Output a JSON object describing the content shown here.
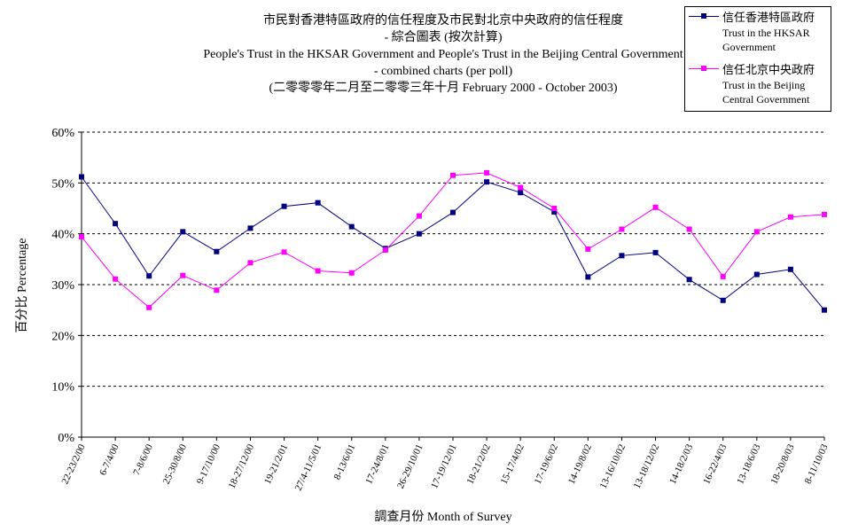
{
  "chart_data": {
    "type": "line",
    "title_lines": [
      "市民對香港特區政府的信任程度及市民對北京中央政府的信任程度",
      "- 綜合圖表 (按次計算)",
      "People's Trust in the HKSAR Government and People's Trust in the Beijing Central Government",
      "- combined charts (per poll)",
      "(二零零零年二月至二零零三年十月 February 2000 - October 2003)"
    ],
    "xlabel": "調查月份 Month of Survey",
    "ylabel": "百分比 Percentage",
    "ylim": [
      0,
      60
    ],
    "yticks": [
      "0%",
      "10%",
      "20%",
      "30%",
      "40%",
      "50%",
      "60%"
    ],
    "grid": "horizontal-dashed",
    "legend_position": "top-right",
    "categories": [
      "22-23/2/00",
      "6-7/4/00",
      "7-8/6/00",
      "25-30/8/00",
      "9-17/10/00",
      "18-27/12/00",
      "19-21/2/01",
      "27/4-11/5/01",
      "8-13/6/01",
      "17-24/8/01",
      "26-29/10/01",
      "17-19/12/01",
      "18-21/2/02",
      "15-17/4/02",
      "17-19/6/02",
      "14-19/8/02",
      "13-16/10/02",
      "13-18/12/02",
      "14-18/2/03",
      "16-22/4/03",
      "13-18/6/03",
      "18-20/8/03",
      "8-11/10/03"
    ],
    "series": [
      {
        "name": "信任香港特區政府",
        "name_en": "Trust in the HKSAR Government",
        "color": "#000080",
        "values": [
          51.2,
          42.0,
          31.7,
          40.4,
          36.5,
          41.1,
          45.4,
          46.1,
          41.4,
          37.1,
          40.0,
          44.2,
          50.2,
          48.1,
          44.3,
          31.5,
          35.7,
          36.3,
          31.0,
          26.9,
          32.0,
          33.0,
          25.0
        ]
      },
      {
        "name": "信任北京中央政府",
        "name_en": "Trust in the Beijing Central Government",
        "color": "#ff00ff",
        "values": [
          39.4,
          31.1,
          25.5,
          31.8,
          28.9,
          34.3,
          36.4,
          32.7,
          32.3,
          36.8,
          43.5,
          51.5,
          52.0,
          49.1,
          45.0,
          37.0,
          40.9,
          45.2,
          40.9,
          31.6,
          40.4,
          43.3,
          43.8
        ]
      }
    ]
  },
  "legend": {
    "series1_zh": "信任香港特區政府",
    "series1_en_line1": "Trust in the HKSAR",
    "series1_en_line2": "Government",
    "series2_zh": "信任北京中央政府",
    "series2_en_line1": "Trust in the Beijing",
    "series2_en_line2": "Central Government"
  }
}
